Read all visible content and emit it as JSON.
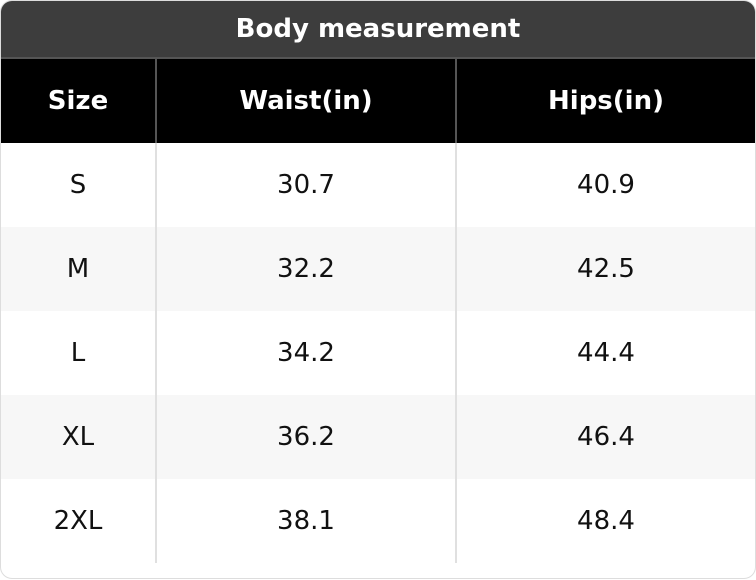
{
  "table": {
    "title": "Body measurement",
    "header": [
      "Size",
      "Waist(in)",
      "Hips(in)"
    ],
    "rows": [
      [
        "S",
        "30.7",
        "40.9"
      ],
      [
        "M",
        "32.2",
        "42.5"
      ],
      [
        "L",
        "34.2",
        "44.4"
      ],
      [
        "XL",
        "36.2",
        "46.4"
      ],
      [
        "2XL",
        "38.1",
        "48.4"
      ]
    ]
  }
}
